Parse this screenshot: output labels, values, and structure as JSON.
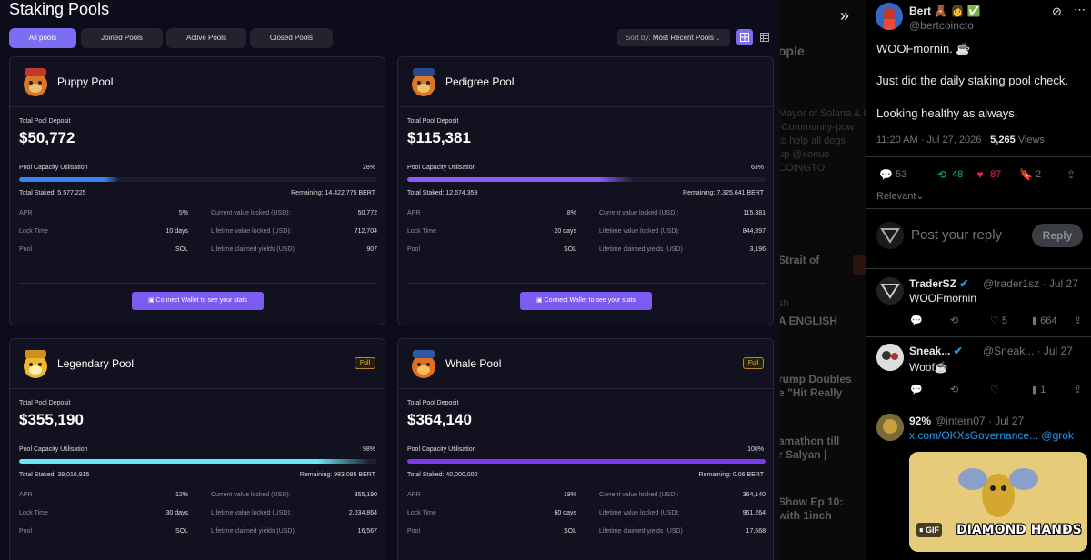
{
  "staking": {
    "title": "Staking Pools",
    "filters": [
      "All pools",
      "Joined Pools",
      "Active Pools",
      "Closed Pools"
    ],
    "sort_label": "Sort by:",
    "sort_value": "Most Recent Pools",
    "pools": [
      {
        "name": "Puppy Pool",
        "full": false,
        "deposit_label": "Total Pool Deposit",
        "deposit": "$50,772",
        "cap_label": "Pool Capacity Utilisation",
        "cap_pct": "28%",
        "cap_fraction": 0.28,
        "fill_color": "#3b82f6",
        "staked": "Total Staked: 5,577,225",
        "remaining": "Remaining: 14,422,775 BERT",
        "apr_label": "APR",
        "apr": "5%",
        "lock_label": "Lock Time",
        "lock": "10 days",
        "pool_label": "Pool",
        "pool": "SOL",
        "cvl_label": "Current value locked (USD):",
        "cvl": "50,772",
        "lvl_label": "Lifetime value locked (USD):",
        "lvl": "712,704",
        "lcy_label": "Lifetime claimed yields (USD)",
        "lcy": "907",
        "connect": "Connect Wallet to see your stats"
      },
      {
        "name": "Pedigree Pool",
        "full": false,
        "deposit_label": "Total Pool Deposit",
        "deposit": "$115,381",
        "cap_label": "Pool Capacity Utilisation",
        "cap_pct": "63%",
        "cap_fraction": 0.63,
        "fill_color": "#8b5cf6",
        "staked": "Total Staked: 12,674,359",
        "remaining": "Remaining: 7,325,641 BERT",
        "apr_label": "APR",
        "apr": "8%",
        "lock_label": "Lock Time",
        "lock": "20 days",
        "pool_label": "Pool",
        "pool": "SOL",
        "cvl_label": "Current value locked (USD):",
        "cvl": "115,381",
        "lvl_label": "Lifetime value locked (USD):",
        "lvl": "844,397",
        "lcy_label": "Lifetime claimed yields (USD)",
        "lcy": "3,196",
        "connect": "Connect Wallet to see your stats"
      },
      {
        "name": "Legendary Pool",
        "full": true,
        "full_label": "Full",
        "deposit_label": "Total Pool Deposit",
        "deposit": "$355,190",
        "cap_label": "Pool Capacity Utilisation",
        "cap_pct": "98%",
        "cap_fraction": 0.98,
        "fill_color": "#67e8f9",
        "staked": "Total Staked: 39,016,915",
        "remaining": "Remaining: 983,085 BERT",
        "apr_label": "APR",
        "apr": "12%",
        "lock_label": "Lock Time",
        "lock": "30 days",
        "pool_label": "Pool",
        "pool": "SOL",
        "cvl_label": "Current value locked (USD):",
        "cvl": "355,190",
        "lvl_label": "Lifetime value locked (USD):",
        "lvl": "2,034,864",
        "lcy_label": "Lifetime claimed yields (USD)",
        "lcy": "16,567"
      },
      {
        "name": "Whale Pool",
        "full": true,
        "full_label": "Full",
        "deposit_label": "Total Pool Deposit",
        "deposit": "$364,140",
        "cap_label": "Pool Capacity Utilisation",
        "cap_pct": "100%",
        "cap_fraction": 1.0,
        "fill_color": "#7c3aed",
        "staked": "Total Staked: 40,000,000",
        "remaining": "Remaining: 0.06 BERT",
        "apr_label": "APR",
        "apr": "18%",
        "lock_label": "Lock Time",
        "lock": "60 days",
        "pool_label": "Pool",
        "pool": "SOL",
        "cvl_label": "Current value locked (USD):",
        "cvl": "364,140",
        "lvl_label": "Lifetime value locked (USD):",
        "lvl": "961,264",
        "lcy_label": "Lifetime claimed yields (USD)",
        "lcy": "17,668"
      }
    ]
  },
  "background_feed": [
    "ople",
    "Mayor of Solana & D",
    "-Community-pow",
    "to help all dogs",
    "up @xonuo",
    "COINGTO",
    "Strait of",
    "sh",
    "A ENGLISH",
    "rump Doubles",
    "e \"Hit Really",
    "amathon till",
    "r Salyan |",
    "Show Ep 10:",
    "with 1inch"
  ],
  "tweet": {
    "author": "Bert 🧸 👩 ✅",
    "handle": "@bertcoincto",
    "line1": "WOOFmornin. ☕",
    "line2": "Just did the daily staking pool check.",
    "line3": "Looking healthy as always.",
    "time": "11:20 AM · Jul 27, 2026 · ",
    "views": "5,265",
    "views_label": "Views",
    "replies": "53",
    "retweets": "48",
    "likes": "87",
    "bookmarks": "2",
    "relevant": "Relevant",
    "reply_placeholder": "Post your reply",
    "reply_button": "Reply",
    "colors": {
      "retweet": "#00ba7c",
      "like": "#f91880",
      "link": "#1d9bf0"
    }
  },
  "replies": [
    {
      "name": "TraderSZ",
      "handle": "@trader1sz · Jul 27",
      "text": "WOOFmornin",
      "likes": "5",
      "views": "664"
    },
    {
      "name": "Sneak...",
      "handle": "@Sneak... · Jul 27",
      "text": "Woof☕",
      "likes": "",
      "views": "1"
    },
    {
      "name": "92%",
      "handle": "@intern07 · Jul 27",
      "link": "x.com/OKXsGovernance...",
      "mention": "@grok",
      "gif_badge": "GIF",
      "gif_text": "DIAMOND HANDS"
    }
  ]
}
